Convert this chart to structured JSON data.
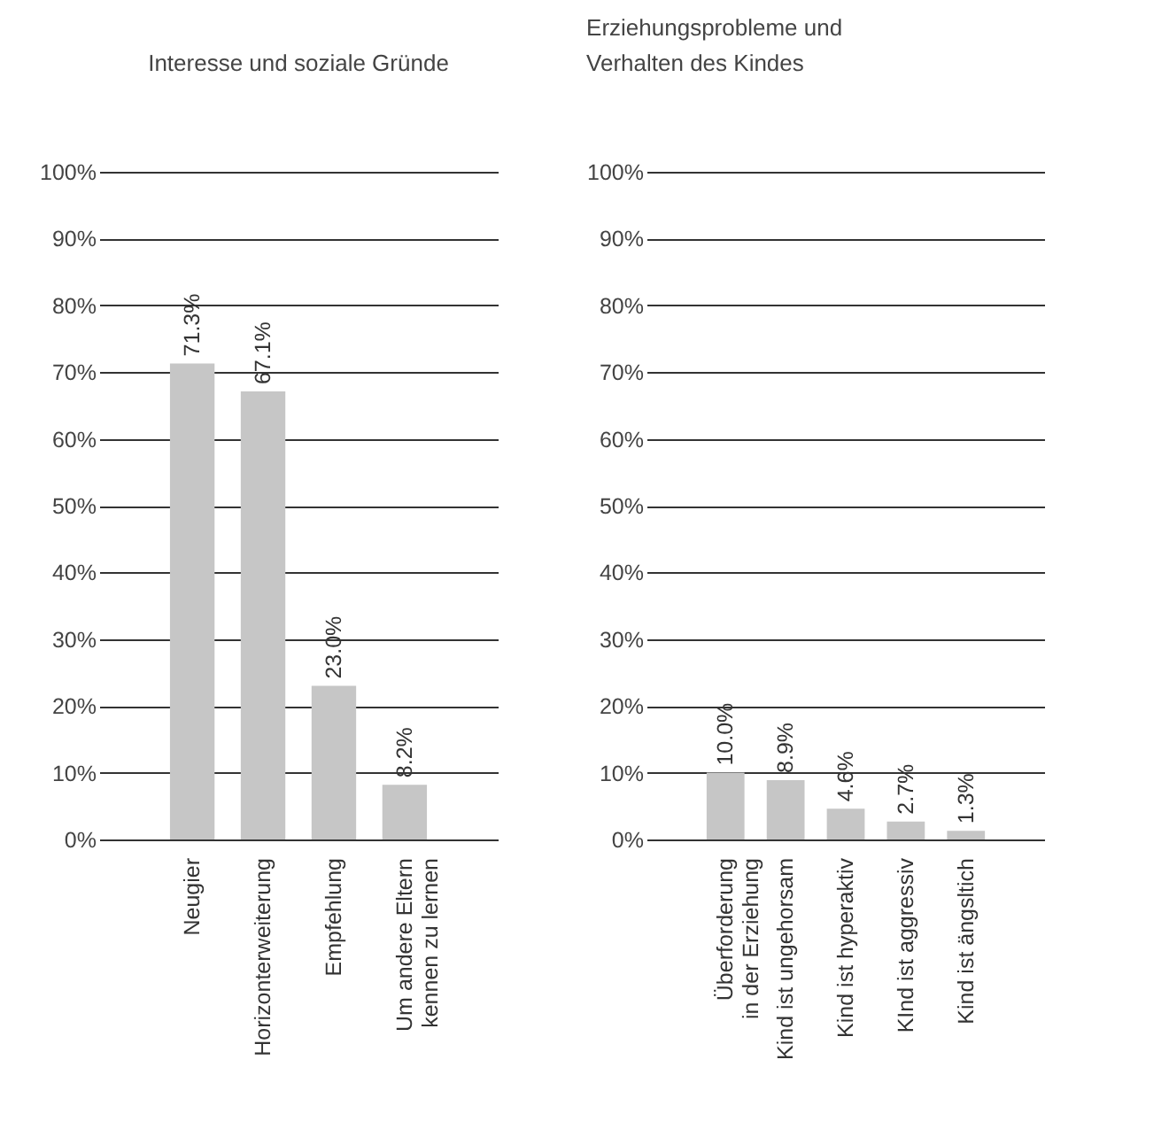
{
  "chart_data": [
    {
      "type": "bar",
      "title": "Interesse und soziale Gründe",
      "categories": [
        "Neugier",
        "Horizonterweiterung",
        "Empfehlung",
        "Um andere Eltern\nkennen zu lernen"
      ],
      "values": [
        71.3,
        67.1,
        23.0,
        8.2
      ],
      "value_labels": [
        "71.3%",
        "67.1%",
        "23.0%",
        "8.2%"
      ],
      "color": "#c6c6c6",
      "ylim": [
        0,
        100
      ],
      "yticks": [
        {
          "value": 0,
          "label": "0%"
        },
        {
          "value": 10,
          "label": "10%"
        },
        {
          "value": 20,
          "label": "20%"
        },
        {
          "value": 30,
          "label": "30%"
        },
        {
          "value": 40,
          "label": "40%"
        },
        {
          "value": 50,
          "label": "50%"
        },
        {
          "value": 60,
          "label": "60%"
        },
        {
          "value": 70,
          "label": "70%"
        },
        {
          "value": 80,
          "label": "80%"
        },
        {
          "value": 90,
          "label": "90%"
        },
        {
          "value": 100,
          "label": "100%"
        }
      ],
      "grid": "y"
    },
    {
      "type": "bar",
      "title": "Erziehungsprobleme und\nVerhalten des Kindes",
      "categories": [
        "Überforderung\nin der Erziehung",
        "Kind ist ungehorsam",
        "Kind ist hyperaktiv",
        "KInd ist aggressiv",
        "Kind ist ängsltich"
      ],
      "values": [
        10.0,
        8.9,
        4.6,
        2.7,
        1.3
      ],
      "value_labels": [
        "10.0%",
        "8.9%",
        "4.6%",
        "2.7%",
        "1.3%"
      ],
      "color": "#c6c6c6",
      "ylim": [
        0,
        100
      ],
      "yticks": [
        {
          "value": 0,
          "label": "0%"
        },
        {
          "value": 10,
          "label": "10%"
        },
        {
          "value": 20,
          "label": "20%"
        },
        {
          "value": 30,
          "label": "30%"
        },
        {
          "value": 40,
          "label": "40%"
        },
        {
          "value": 50,
          "label": "50%"
        },
        {
          "value": 60,
          "label": "60%"
        },
        {
          "value": 70,
          "label": "70%"
        },
        {
          "value": 80,
          "label": "80%"
        },
        {
          "value": 90,
          "label": "90%"
        },
        {
          "value": 100,
          "label": "100%"
        }
      ],
      "grid": "y"
    }
  ]
}
